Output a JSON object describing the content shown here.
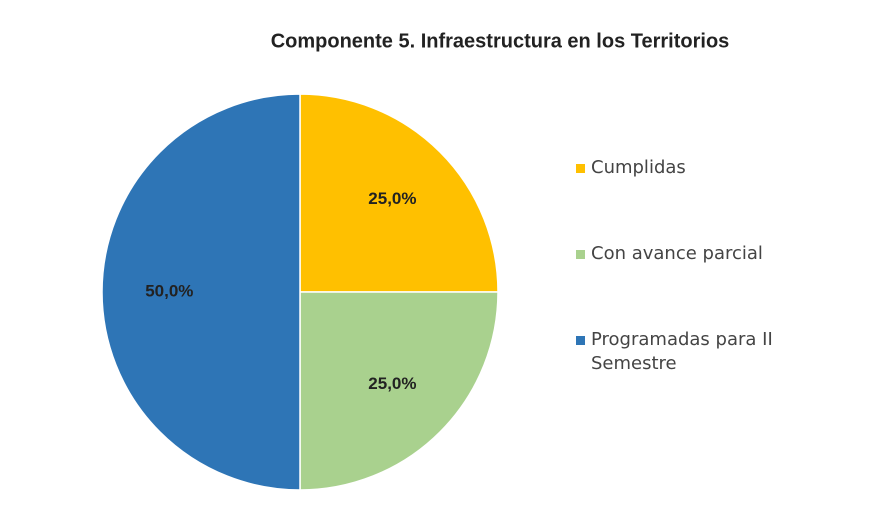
{
  "chart_data": {
    "type": "pie",
    "title": "Componente 5. Infraestructura en los Territorios",
    "categories": [
      "Cumplidas",
      "Con avance parcial",
      "Programadas para II Semestre"
    ],
    "values": [
      25,
      25,
      50
    ],
    "value_labels": [
      "25,0%",
      "25,0%",
      "50,0%"
    ],
    "colors": [
      "#FFC000",
      "#A9D18E",
      "#2E75B6"
    ],
    "legend": "right"
  }
}
